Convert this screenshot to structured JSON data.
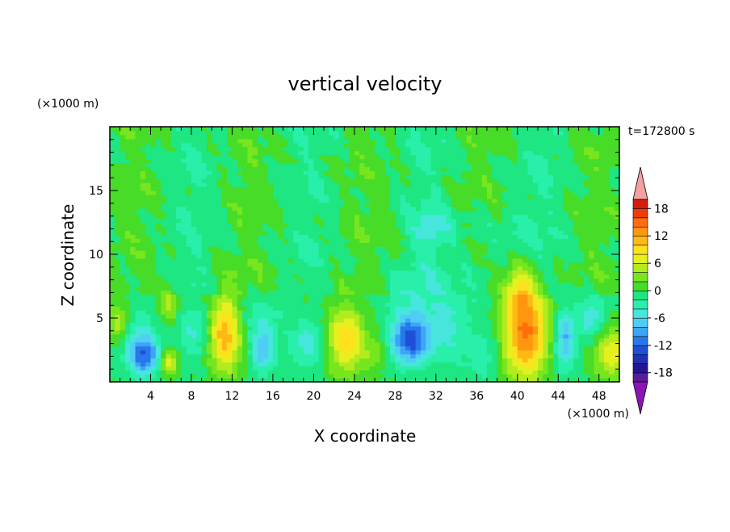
{
  "chart_data": {
    "type": "heatmap",
    "title": "vertical velocity",
    "time_label": "t=172800 s",
    "xlabel": "X coordinate",
    "ylabel": "Z coordinate",
    "x_unit_label": "(×1000 m)",
    "y_unit_label": "(×1000 m)",
    "xlim": [
      0,
      50
    ],
    "ylim": [
      0,
      20
    ],
    "x_ticks": [
      4,
      8,
      12,
      16,
      20,
      24,
      28,
      32,
      36,
      40,
      44,
      48
    ],
    "x_tick_labels": [
      "4",
      "8",
      "12",
      "16",
      "20",
      "24",
      "28",
      "32",
      "36",
      "40",
      "44",
      "48"
    ],
    "y_ticks": [
      5,
      10,
      15
    ],
    "y_tick_labels": [
      "5",
      "10",
      "15"
    ],
    "colorbar": {
      "levels": [
        -20,
        -18,
        -16,
        -14,
        -12,
        -10,
        -8,
        -6,
        -4,
        -2,
        0,
        2,
        4,
        6,
        8,
        10,
        12,
        14,
        16,
        18,
        20
      ],
      "tick_values": [
        18,
        12,
        6,
        0,
        -6,
        -12,
        -18
      ],
      "tick_labels": [
        "18",
        "12",
        "6",
        "0",
        "-6",
        "-12",
        "-18"
      ],
      "colors": [
        "#5a1a9a",
        "#241496",
        "#1e32b4",
        "#1e50d7",
        "#2878eb",
        "#3ca5f5",
        "#50cdf5",
        "#46e6dc",
        "#28f0aa",
        "#1ee682",
        "#46dc28",
        "#78e61e",
        "#b4eb1e",
        "#e6f01e",
        "#ffe11e",
        "#ffb914",
        "#ff960f",
        "#ff6e0a",
        "#f03c0a",
        "#d21e0a"
      ],
      "over_color": "#f5a0a0",
      "under_color": "#8c14b4"
    },
    "features": [
      {
        "x": 3.5,
        "z": 2.0,
        "amp": -10,
        "sx": 1.0,
        "sz": 1.0
      },
      {
        "x": 2.7,
        "z": 3.5,
        "amp": -4,
        "sx": 1.5,
        "sz": 1.6
      },
      {
        "x": 0.8,
        "z": 4.6,
        "amp": 6,
        "sx": 0.8,
        "sz": 1.1
      },
      {
        "x": 5.8,
        "z": 6.2,
        "amp": 5,
        "sx": 0.7,
        "sz": 1.2
      },
      {
        "x": 5.8,
        "z": 1.6,
        "amp": 8,
        "sx": 0.7,
        "sz": 0.7
      },
      {
        "x": 8.3,
        "z": 4.0,
        "amp": -4,
        "sx": 1.2,
        "sz": 1.5
      },
      {
        "x": 11.3,
        "z": 3.8,
        "amp": 12,
        "sx": 1.1,
        "sz": 2.1
      },
      {
        "x": 15.0,
        "z": 2.5,
        "amp": -7,
        "sx": 0.8,
        "sz": 1.2
      },
      {
        "x": 14.8,
        "z": 5.0,
        "amp": -3,
        "sx": 1.5,
        "sz": 1.3
      },
      {
        "x": 19.4,
        "z": 3.0,
        "amp": -5,
        "sx": 1.1,
        "sz": 1.3
      },
      {
        "x": 23.2,
        "z": 3.3,
        "amp": 10,
        "sx": 1.3,
        "sz": 1.8
      },
      {
        "x": 26.0,
        "z": 2.2,
        "amp": 3,
        "sx": 0.8,
        "sz": 1.0
      },
      {
        "x": 29.5,
        "z": 3.3,
        "amp": -13,
        "sx": 1.3,
        "sz": 1.3
      },
      {
        "x": 29.8,
        "z": 6.5,
        "amp": -3,
        "sx": 2.2,
        "sz": 1.6
      },
      {
        "x": 33.2,
        "z": 4.2,
        "amp": -4,
        "sx": 1.3,
        "sz": 1.8
      },
      {
        "x": 36.5,
        "z": 2.0,
        "amp": -3,
        "sx": 1.2,
        "sz": 1.3
      },
      {
        "x": 40.8,
        "z": 4.0,
        "amp": 15,
        "sx": 1.5,
        "sz": 2.6
      },
      {
        "x": 40.0,
        "z": 7.4,
        "amp": 6,
        "sx": 1.2,
        "sz": 1.3
      },
      {
        "x": 44.6,
        "z": 3.3,
        "amp": -8,
        "sx": 0.7,
        "sz": 1.6
      },
      {
        "x": 47.3,
        "z": 5.0,
        "amp": -5,
        "sx": 1.0,
        "sz": 1.3
      },
      {
        "x": 49.3,
        "z": 2.3,
        "amp": 8,
        "sx": 1.3,
        "sz": 1.4
      },
      {
        "x": 37.5,
        "z": 9.5,
        "amp": -2,
        "sx": 3.0,
        "sz": 3.0
      },
      {
        "x": 31.5,
        "z": 12.0,
        "amp": -4,
        "sx": 1.3,
        "sz": 1.0
      },
      {
        "x": 28.0,
        "z": 10.0,
        "amp": 3,
        "sx": 0.2,
        "sz": 0.5
      }
    ]
  }
}
